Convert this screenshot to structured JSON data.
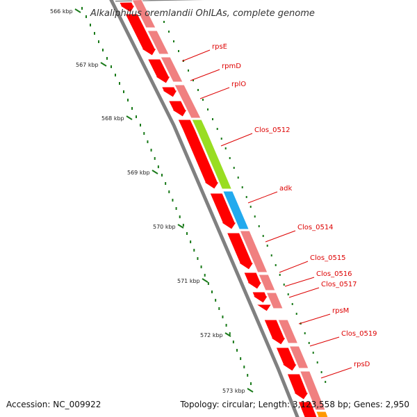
{
  "map": {
    "title": "Alkaliphilus oremlandii OhILAs, complete genome",
    "accession": "Accession: NC_009922",
    "summary": "Topology: circular; Length: 3,123,558 bp; Genes: 2,950",
    "colors": {
      "cds": "#ff0000",
      "cds_light": "#f08080",
      "tick": "#1a7a1a",
      "backbone": "#808080",
      "label": "#dd0000",
      "green_feature": "#99dd22",
      "blue_feature": "#22aaee",
      "orange_feature": "#ff9900"
    },
    "ticks": [
      {
        "label": "566 kbp",
        "kbp": 566
      },
      {
        "label": "567 kbp",
        "kbp": 567
      },
      {
        "label": "568 kbp",
        "kbp": 568
      },
      {
        "label": "569 kbp",
        "kbp": 569
      },
      {
        "label": "570 kbp",
        "kbp": 570
      },
      {
        "label": "571 kbp",
        "kbp": 571
      },
      {
        "label": "572 kbp",
        "kbp": 572
      },
      {
        "label": "573 kbp",
        "kbp": 573
      }
    ],
    "genes": [
      {
        "name": "rpsE"
      },
      {
        "name": "rpmD"
      },
      {
        "name": "rplO"
      },
      {
        "name": "Clos_0512",
        "color": "green_feature"
      },
      {
        "name": "adk",
        "color": "blue_feature"
      },
      {
        "name": "Clos_0514"
      },
      {
        "name": "Clos_0515"
      },
      {
        "name": "Clos_0516"
      },
      {
        "name": "Clos_0517"
      },
      {
        "name": "rpsM"
      },
      {
        "name": "Clos_0519"
      },
      {
        "name": "rpsD"
      }
    ]
  }
}
